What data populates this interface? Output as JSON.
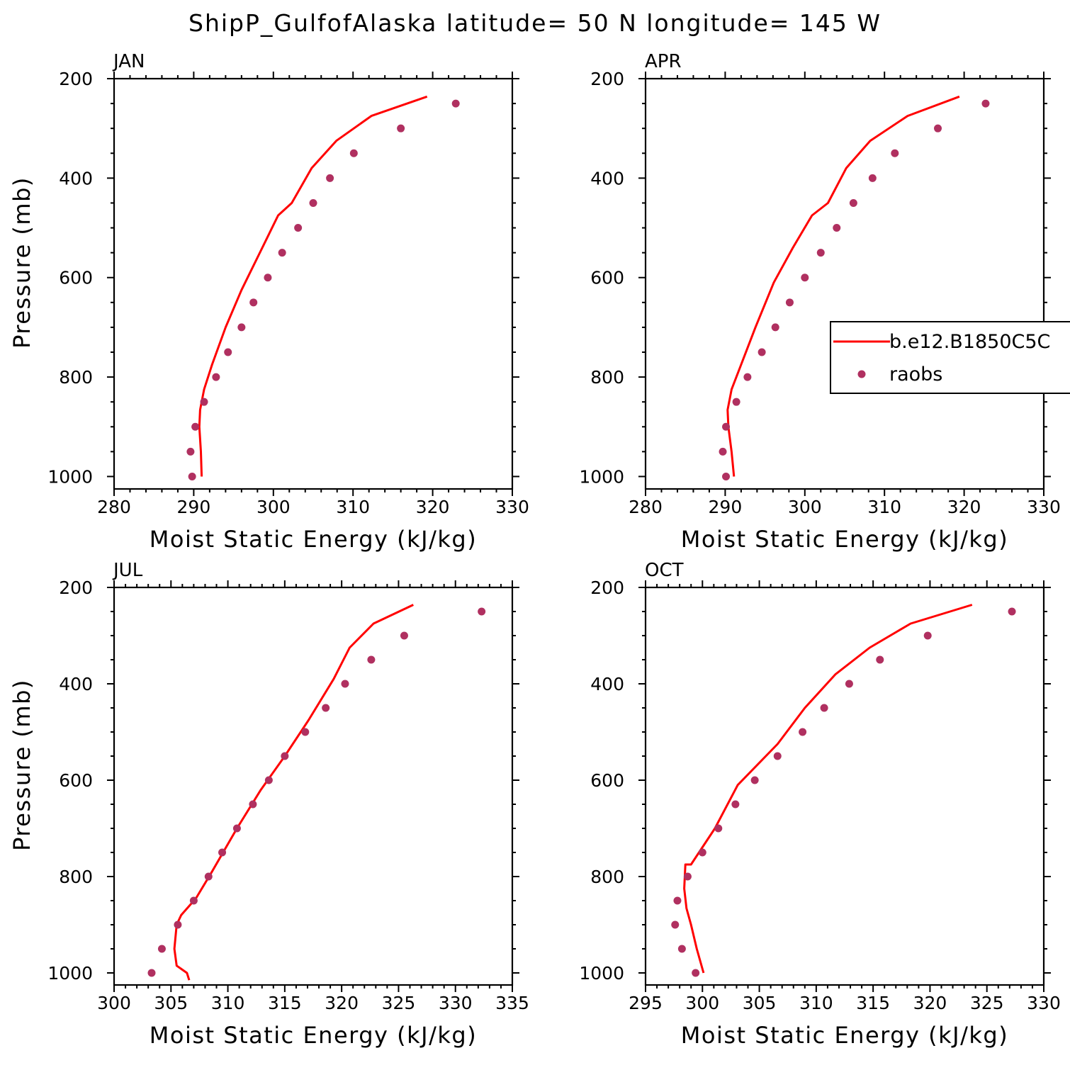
{
  "title": "ShipP_GulfofAlaska  latitude= 50 N longitude= 145 W",
  "colors": {
    "model": "#ff0000",
    "obs": "#b03060",
    "axis": "#000000"
  },
  "legend": {
    "model_label": "b.e12.B1850C5C",
    "obs_label": "raobs"
  },
  "chart_data": [
    {
      "type": "line",
      "panel_label": "JAN",
      "xlabel": "Moist Static Energy (kJ/kg)",
      "ylabel": "Pressure (mb)",
      "xlim": [
        280,
        330
      ],
      "ylim": [
        1025,
        200
      ],
      "x_ticks": [
        280,
        290,
        300,
        310,
        320,
        330
      ],
      "y_ticks": [
        200,
        400,
        600,
        800,
        1000
      ],
      "series": [
        {
          "name": "b.e12.B1850C5C",
          "kind": "line",
          "x": [
            291.0,
            290.9,
            290.7,
            290.8,
            291.3,
            292.3,
            294.0,
            296.0,
            298.3,
            300.6,
            302.3,
            304.8,
            307.9,
            312.3,
            319.3
          ],
          "y": [
            1000,
            950,
            900,
            866,
            825,
            775,
            700,
            625,
            550,
            475,
            450,
            380,
            325,
            275,
            236
          ]
        },
        {
          "name": "raobs",
          "kind": "scatter",
          "x": [
            289.8,
            289.6,
            290.2,
            291.3,
            292.8,
            294.3,
            296.0,
            297.5,
            299.3,
            301.1,
            303.1,
            305.0,
            307.1,
            310.1,
            316.0,
            322.9
          ],
          "y": [
            1000,
            950,
            900,
            850,
            800,
            750,
            700,
            650,
            600,
            550,
            500,
            450,
            400,
            350,
            300,
            250
          ]
        }
      ]
    },
    {
      "type": "line",
      "panel_label": "APR",
      "xlabel": "Moist Static Energy (kJ/kg)",
      "ylabel": "",
      "xlim": [
        280,
        330
      ],
      "ylim": [
        1025,
        200
      ],
      "x_ticks": [
        280,
        290,
        300,
        310,
        320,
        330
      ],
      "y_ticks": [
        200,
        400,
        600,
        800,
        1000
      ],
      "series": [
        {
          "name": "b.e12.B1850C5C",
          "kind": "line",
          "x": [
            291.1,
            290.8,
            290.4,
            290.3,
            290.8,
            292.0,
            293.8,
            296.1,
            298.5,
            300.9,
            302.9,
            305.2,
            308.2,
            312.9,
            319.4
          ],
          "y": [
            1000,
            950,
            900,
            866,
            825,
            775,
            700,
            610,
            540,
            475,
            450,
            380,
            325,
            275,
            236
          ]
        },
        {
          "name": "raobs",
          "kind": "scatter",
          "x": [
            290.1,
            289.7,
            290.1,
            291.4,
            292.8,
            294.6,
            296.3,
            298.1,
            300.0,
            302.0,
            304.0,
            306.1,
            308.5,
            311.3,
            316.7,
            322.7
          ],
          "y": [
            1000,
            950,
            900,
            850,
            800,
            750,
            700,
            650,
            600,
            550,
            500,
            450,
            400,
            350,
            300,
            250
          ]
        }
      ]
    },
    {
      "type": "line",
      "panel_label": "JUL",
      "xlabel": "Moist Static Energy (kJ/kg)",
      "ylabel": "Pressure (mb)",
      "xlim": [
        300,
        335
      ],
      "ylim": [
        1025,
        200
      ],
      "x_ticks": [
        300,
        305,
        310,
        315,
        320,
        325,
        330,
        335
      ],
      "y_ticks": [
        200,
        400,
        600,
        800,
        1000
      ],
      "series": [
        {
          "name": "b.e12.B1850C5C",
          "kind": "line",
          "x": [
            306.6,
            306.4,
            305.5,
            305.3,
            305.5,
            305.9,
            307.2,
            308.6,
            310.8,
            312.9,
            315.0,
            317.1,
            319.3,
            320.7,
            322.8,
            326.3
          ],
          "y": [
            1015,
            1000,
            985,
            950,
            900,
            880,
            845,
            790,
            700,
            620,
            550,
            475,
            390,
            325,
            275,
            236
          ]
        },
        {
          "name": "raobs",
          "kind": "scatter",
          "x": [
            303.3,
            304.2,
            305.6,
            307.0,
            308.3,
            309.5,
            310.8,
            312.2,
            313.6,
            315.0,
            316.8,
            318.6,
            320.3,
            322.6,
            325.5,
            332.3
          ],
          "y": [
            1000,
            950,
            900,
            850,
            800,
            750,
            700,
            650,
            600,
            550,
            500,
            450,
            400,
            350,
            300,
            250
          ]
        }
      ]
    },
    {
      "type": "line",
      "panel_label": "OCT",
      "xlabel": "Moist Static Energy (kJ/kg)",
      "ylabel": "",
      "xlim": [
        295,
        330
      ],
      "ylim": [
        1025,
        200
      ],
      "x_ticks": [
        295,
        300,
        305,
        310,
        315,
        320,
        325,
        330
      ],
      "y_ticks": [
        200,
        400,
        600,
        800,
        1000
      ],
      "series": [
        {
          "name": "b.e12.B1850C5C",
          "kind": "line",
          "x": [
            300.1,
            299.5,
            299.0,
            298.6,
            298.4,
            298.5,
            299.0,
            301.1,
            303.1,
            306.6,
            309.0,
            311.7,
            314.7,
            318.3,
            323.7
          ],
          "y": [
            1000,
            950,
            900,
            866,
            825,
            775,
            775,
            700,
            610,
            525,
            450,
            380,
            325,
            275,
            236
          ]
        },
        {
          "name": "raobs",
          "kind": "scatter",
          "x": [
            299.4,
            298.2,
            297.6,
            297.8,
            298.7,
            300.0,
            301.4,
            302.9,
            304.6,
            306.6,
            308.8,
            310.7,
            312.9,
            315.6,
            319.8,
            327.2
          ],
          "y": [
            1000,
            950,
            900,
            850,
            800,
            750,
            700,
            650,
            600,
            550,
            500,
            450,
            400,
            350,
            300,
            250
          ]
        }
      ]
    }
  ]
}
